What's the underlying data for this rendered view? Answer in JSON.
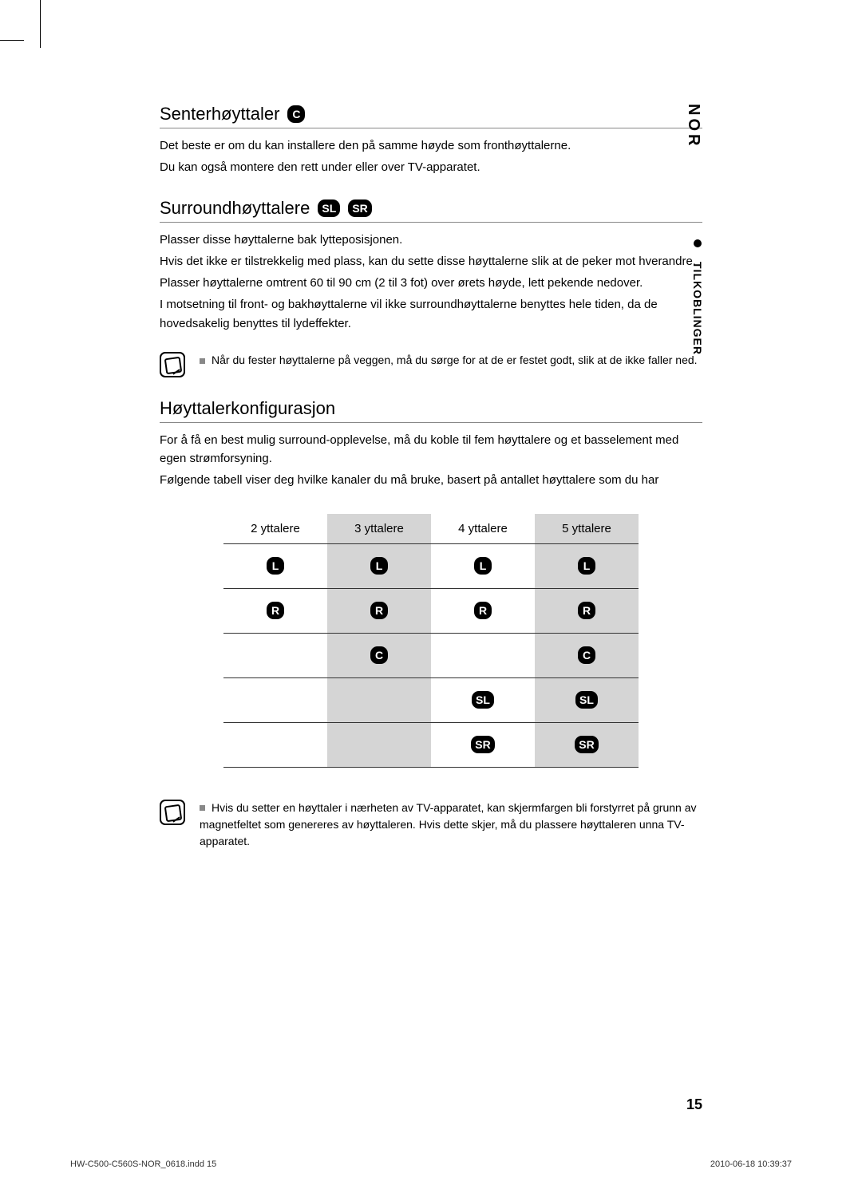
{
  "side": {
    "lang": "NOR",
    "section": "TILKOBLINGER"
  },
  "sections": {
    "center": {
      "heading": "Senterhøyttaler",
      "badge": "C",
      "p1": "Det beste er om du kan installere den på samme høyde som fronthøyttalerne.",
      "p2": "Du kan også montere den rett under eller over TV-apparatet."
    },
    "surround": {
      "heading": "Surroundhøyttalere",
      "badges": [
        "SL",
        "SR"
      ],
      "p1": "Plasser disse høyttalerne bak lytteposisjonen.",
      "p2": "Hvis det ikke er tilstrekkelig med plass, kan du sette disse høyttalerne slik at de peker mot hverandre.",
      "p3": "Plasser høyttalerne omtrent 60 til 90 cm (2 til 3 fot) over ørets høyde, lett pekende nedover.",
      "p4": "I motsetning til front- og bakhøyttalerne vil ikke surroundhøyttalerne benyttes hele tiden, da de hovedsakelig benyttes til lydeffekter."
    },
    "note1": "Når du fester høyttalerne på veggen, må du sørge for at de er festet godt, slik at de ikke faller ned.",
    "config": {
      "heading": "Høyttalerkonfigurasjon",
      "p1": "For å få en best mulig surround-opplevelse, må du koble til fem høyttalere og et basselement med egen strømforsyning.",
      "p2": "Følgende tabell viser deg hvilke kanaler du må bruke, basert på antallet høyttalere som du har"
    },
    "table": {
      "headers": [
        "2 yttalere",
        "3   yttalere",
        "4 yttalere",
        "5 yttalere"
      ],
      "rows": [
        {
          "cells": [
            "L",
            "L",
            "L",
            "L"
          ],
          "shaded": [
            false,
            true,
            false,
            true
          ]
        },
        {
          "cells": [
            "R",
            "R",
            "R",
            "R"
          ],
          "shaded": [
            false,
            true,
            false,
            true
          ]
        },
        {
          "cells": [
            "",
            "C",
            "",
            "C"
          ],
          "shaded": [
            false,
            true,
            false,
            true
          ]
        },
        {
          "cells": [
            "",
            "",
            "SL",
            "SL"
          ],
          "shaded": [
            false,
            true,
            false,
            true
          ]
        },
        {
          "cells": [
            "",
            "",
            "SR",
            "SR"
          ],
          "shaded": [
            false,
            true,
            false,
            true
          ]
        }
      ]
    },
    "note2": "Hvis du setter en høyttaler i nærheten av TV-apparatet, kan skjermfargen bli forstyrret på grunn av magnetfeltet som genereres av høyttaleren. Hvis dette skjer, må du plassere høyttaleren unna TV-apparatet."
  },
  "pageNumber": "15",
  "footer": {
    "left": "HW-C500-C560S-NOR_0618.indd   15",
    "right": "2010-06-18   10:39:37"
  },
  "colors": {
    "tableShade": "#d5d5d5",
    "rule": "#888888",
    "badgeBg": "#000000",
    "badgeFg": "#ffffff",
    "textGrey": "#888888"
  }
}
